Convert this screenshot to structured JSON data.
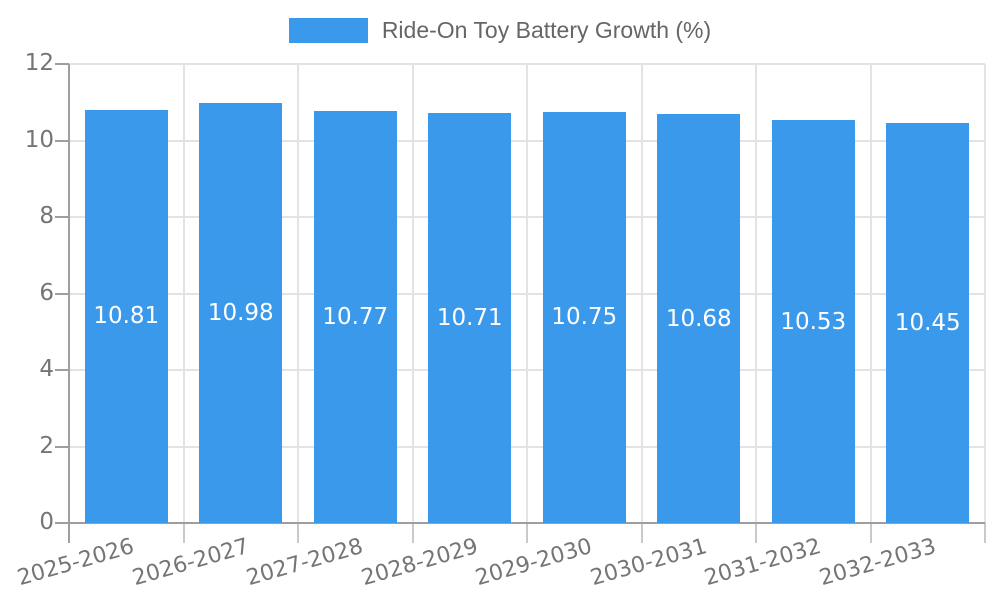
{
  "legend": {
    "label": "Ride-On Toy Battery Growth (%)"
  },
  "colors": {
    "bar": "#3b99ec",
    "bar_label": "#ffffff",
    "grid": "#e3e3e3",
    "axis": "#9e9e9e",
    "tick": "#c9c9c9",
    "tick_label": "#757575",
    "legend_text": "#666666",
    "background": "#ffffff"
  },
  "chart_data": {
    "type": "bar",
    "title": "Ride-On Toy Battery Growth (%)",
    "series_name": "Ride-On Toy Battery Growth (%)",
    "categories": [
      "2025-2026",
      "2026-2027",
      "2027-2028",
      "2028-2029",
      "2029-2030",
      "2030-2031",
      "2031-2032",
      "2032-2033"
    ],
    "values": [
      10.81,
      10.98,
      10.77,
      10.71,
      10.75,
      10.68,
      10.53,
      10.45
    ],
    "bar_labels": [
      "10.81",
      "10.98",
      "10.77",
      "10.71",
      "10.75",
      "10.68",
      "10.53",
      "10.45"
    ],
    "xlabel": "",
    "ylabel": "",
    "ylim": [
      0,
      12
    ],
    "yticks": [
      0,
      2,
      4,
      6,
      8,
      10,
      12
    ],
    "grid": true,
    "legend_position": "top-center",
    "x_label_rotation_deg": -16,
    "bar_value_labels_visible": true
  }
}
